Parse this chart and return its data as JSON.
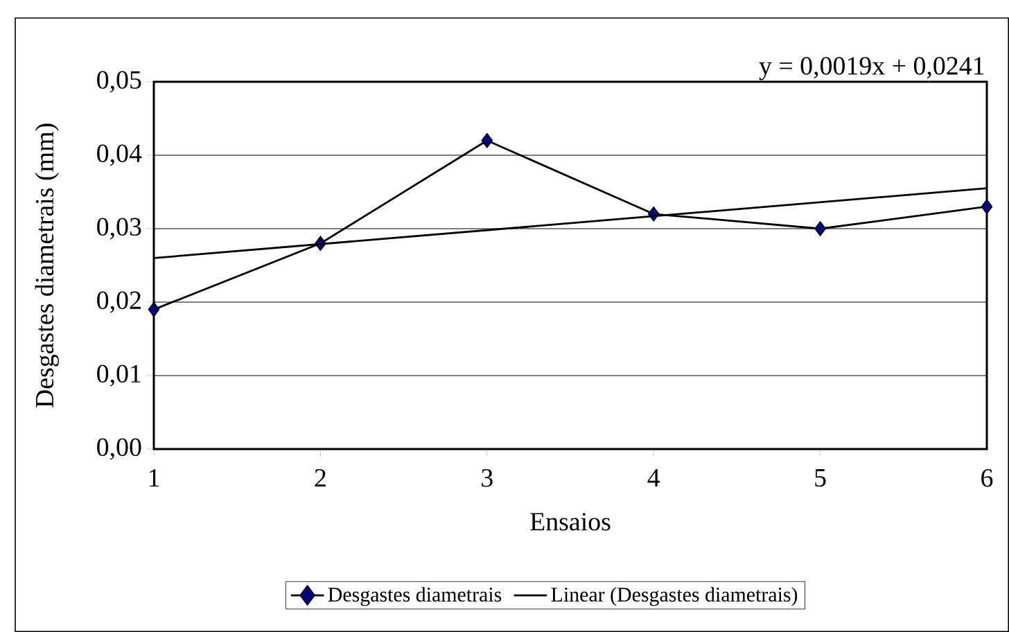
{
  "chart_data": {
    "type": "line",
    "xlabel": "Ensaios",
    "ylabel": "Desgastes diametrais (mm)",
    "annotations": [
      "y = 0,0019x + 0,0241"
    ],
    "xlim": [
      1,
      6
    ],
    "xticks": [
      1,
      2,
      3,
      4,
      5,
      6
    ],
    "ylim": [
      0,
      0.05
    ],
    "yticks": [
      {
        "value": 0,
        "label": "0,00"
      },
      {
        "value": 0.01,
        "label": "0,01"
      },
      {
        "value": 0.02,
        "label": "0,02"
      },
      {
        "value": 0.03,
        "label": "0,03"
      },
      {
        "value": 0.04,
        "label": "0,04"
      },
      {
        "value": 0.05,
        "label": "0,05"
      }
    ],
    "grid": "y",
    "legend": "bottom",
    "series": [
      {
        "name": "Desgastes diametrais",
        "color": "#000000",
        "marker": "diamond",
        "x": [
          1,
          2,
          3,
          4,
          5,
          6
        ],
        "values": [
          0.019,
          0.028,
          0.042,
          0.032,
          0.03,
          0.033
        ]
      },
      {
        "name": "Linear (Desgastes diametrais)",
        "type": "line",
        "color": "#000000",
        "marker": "none",
        "x": [
          1,
          6
        ],
        "values": [
          0.026,
          0.0355
        ]
      }
    ]
  }
}
